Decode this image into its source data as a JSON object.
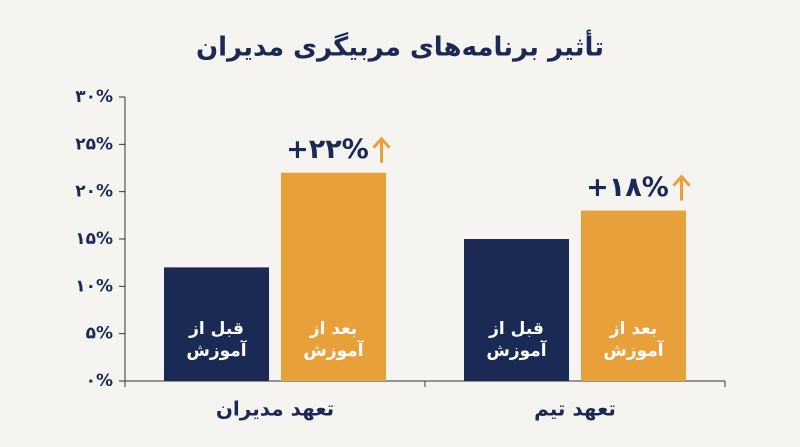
{
  "chart_data": {
    "type": "bar",
    "title": "تأثیر برنامه‌های مربیگری مدیران",
    "categories": [
      "تعهد مدیران",
      "تعهد تیم"
    ],
    "series": [
      {
        "name": "قبل از آموزش",
        "color": "#1b2a55",
        "values": [
          12,
          15
        ]
      },
      {
        "name": "بعد از آموزش",
        "color": "#e8a03a",
        "values": [
          22,
          18
        ],
        "value_labels": [
          "+۲۲%",
          "+۱۸%"
        ]
      }
    ],
    "ylim": [
      0,
      30
    ],
    "yticks": [
      {
        "value": 0,
        "label": "۰%"
      },
      {
        "value": 5,
        "label": "۵%"
      },
      {
        "value": 10,
        "label": "۱۰%"
      },
      {
        "value": 15,
        "label": "۱۵%"
      },
      {
        "value": 20,
        "label": "۲۰%"
      },
      {
        "value": 25,
        "label": "۲۵%"
      },
      {
        "value": 30,
        "label": "۳۰%"
      }
    ],
    "grid": false
  }
}
